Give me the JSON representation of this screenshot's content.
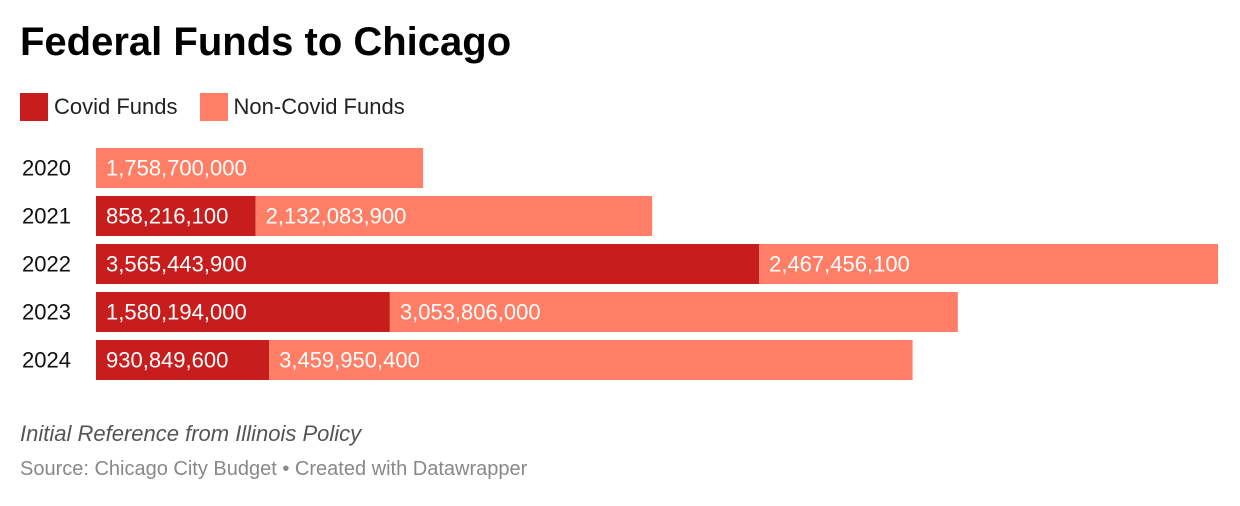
{
  "chart_data": {
    "type": "bar",
    "orientation": "horizontal",
    "stacked": true,
    "title": "Federal Funds to Chicago",
    "categories": [
      "2020",
      "2021",
      "2022",
      "2023",
      "2024"
    ],
    "series": [
      {
        "name": "Covid Funds",
        "color": "#c71e1d",
        "values": [
          0,
          858216100,
          3565443900,
          1580194000,
          930849600
        ],
        "labels": [
          "",
          "858,216,100",
          "3,565,443,900",
          "1,580,194,000",
          "930,849,600"
        ]
      },
      {
        "name": "Non-Covid Funds",
        "color": "#ff7e65",
        "values": [
          1758700000,
          2132083900,
          2467456100,
          3053806000,
          3459950400
        ],
        "labels": [
          "1,758,700,000",
          "2,132,083,900",
          "2,467,456,100",
          "3,053,806,000",
          "3,459,950,400"
        ]
      }
    ],
    "xlim": [
      0,
      6032900000
    ],
    "legend_position": "top-left",
    "grid": false
  },
  "notes": "Initial Reference from Illinois Policy",
  "source": "Source: Chicago City Budget • Created with Datawrapper"
}
